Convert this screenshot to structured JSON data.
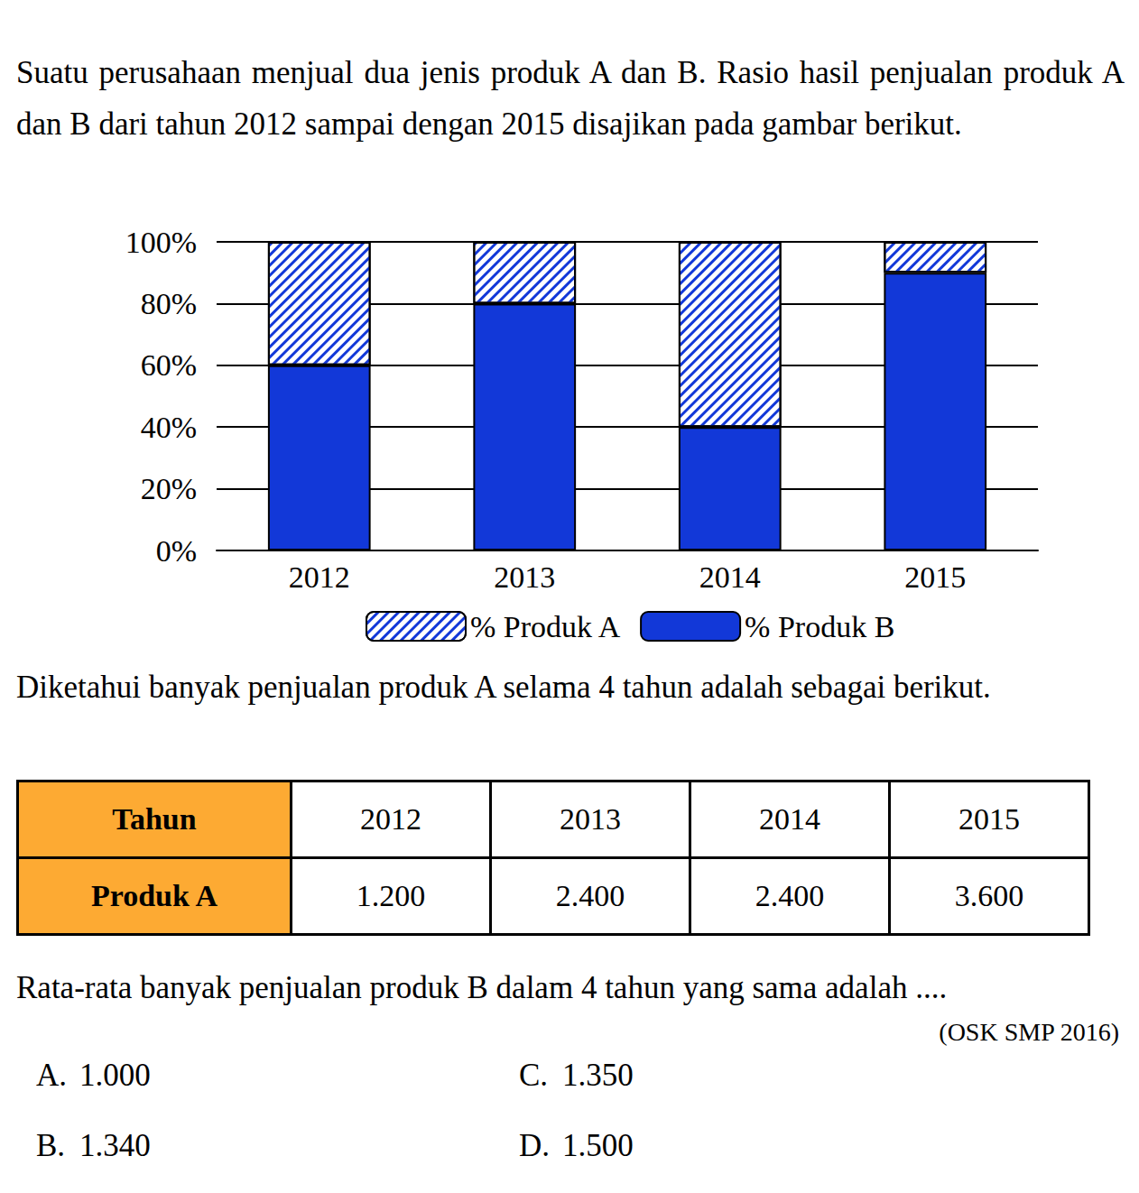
{
  "intro": "Suatu perusahaan menjual dua jenis produk A dan B. Rasio hasil penjualan produk A dan B dari tahun 2012 sampai dengan 2015 disajikan pada gambar berikut.",
  "chart_data": {
    "type": "bar",
    "stacked": true,
    "categories": [
      "2012",
      "2013",
      "2014",
      "2015"
    ],
    "series": [
      {
        "name": "% Produk A",
        "color": "#1238d8",
        "values": [
          40,
          20,
          60,
          10
        ]
      },
      {
        "name": "% Produk B",
        "color": "#1238d8",
        "values": [
          60,
          80,
          40,
          90
        ]
      }
    ],
    "ylim": [
      0,
      100
    ],
    "yticks": [
      {
        "value": 0,
        "label": "0%"
      },
      {
        "value": 20,
        "label": "20%"
      },
      {
        "value": 40,
        "label": "40%"
      },
      {
        "value": 60,
        "label": "60%"
      },
      {
        "value": 80,
        "label": "80%"
      },
      {
        "value": 100,
        "label": "100%"
      }
    ],
    "grid": true,
    "legend": "bottom"
  },
  "statement": "Diketahui banyak penjualan produk A selama 4 tahun adalah sebagai berikut.",
  "table": {
    "rows": [
      [
        "Tahun",
        "2012",
        "2013",
        "2014",
        "2015"
      ],
      [
        "Produk A",
        "1.200",
        "2.400",
        "2.400",
        "3.600"
      ]
    ]
  },
  "question": "Rata-rata banyak penjualan produk B dalam 4 tahun yang sama adalah ....",
  "source": "(OSK SMP 2016)",
  "options": [
    {
      "letter": "A.",
      "text": "1.000"
    },
    {
      "letter": "B.",
      "text": "1.340"
    },
    {
      "letter": "C.",
      "text": "1.350"
    },
    {
      "letter": "D.",
      "text": "1.500"
    }
  ]
}
